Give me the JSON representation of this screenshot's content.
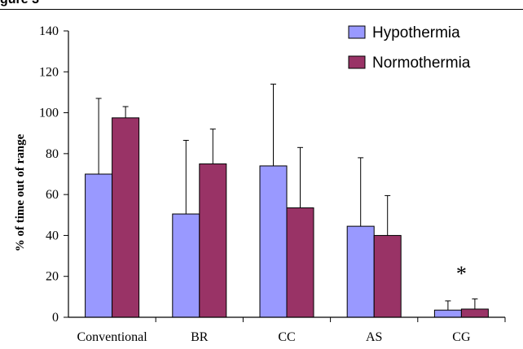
{
  "figure_label": "gure 3",
  "chart_data": {
    "type": "bar",
    "title": "",
    "xlabel": "",
    "ylabel": "% of time out of range",
    "ylim": [
      0,
      140
    ],
    "yticks": [
      0,
      20,
      40,
      60,
      80,
      100,
      120,
      140
    ],
    "categories": [
      "Conventional",
      "BR",
      "CC",
      "AS",
      "CG"
    ],
    "series": [
      {
        "name": "Hypothermia",
        "color": "#9999ff",
        "values": [
          70,
          50.5,
          74,
          44.5,
          3.5
        ],
        "error_upper": [
          107,
          86.5,
          114,
          78,
          8
        ]
      },
      {
        "name": "Normothermia",
        "color": "#993366",
        "values": [
          97.5,
          75,
          53.5,
          40,
          4
        ],
        "error_upper": [
          103,
          92,
          83,
          59.5,
          9
        ]
      }
    ],
    "annotations": [
      {
        "text": "*",
        "category": "CG"
      }
    ],
    "legend_position": "top-right",
    "grid": false
  }
}
